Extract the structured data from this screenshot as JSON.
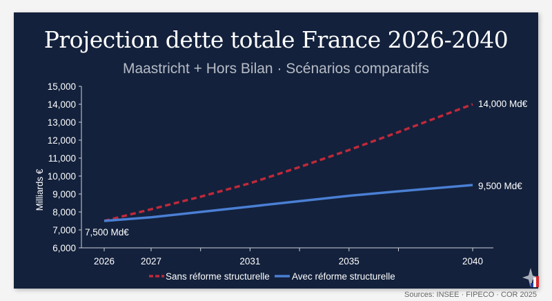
{
  "title": "Projection dette totale France 2026-2040",
  "subtitle": "Maastricht + Hors Bilan · Scénarios comparatifs",
  "sources": "Sources: INSEE · FIPECO · COR 2025",
  "chart_data": {
    "type": "line",
    "ylabel": "Milliards €",
    "xlabel": "",
    "ylim": [
      6000,
      15000
    ],
    "yticks": [
      "6,000",
      "7,000",
      "8,000",
      "9,000",
      "10,000",
      "11,000",
      "12,000",
      "13,000",
      "14,000",
      "15,000"
    ],
    "xticks": [
      "2026",
      "2027",
      "2031",
      "2035",
      "2040"
    ],
    "x": [
      2026,
      2027,
      2029,
      2031,
      2033,
      2035,
      2037,
      2040
    ],
    "series": [
      {
        "name": "Sans réforme structurelle",
        "color": "#c0293a",
        "style": "dashed",
        "values": [
          7500,
          8150,
          8850,
          9600,
          10500,
          11450,
          12450,
          14000
        ]
      },
      {
        "name": "Avec réforme structurelle",
        "color": "#4a7fd4",
        "style": "solid",
        "values": [
          7500,
          7700,
          8000,
          8300,
          8600,
          8900,
          9150,
          9500
        ]
      }
    ],
    "annotations": [
      "7,500 Md€",
      "14,000 Md€",
      "9,500 Md€"
    ],
    "legend": "bottom",
    "grid": false
  }
}
